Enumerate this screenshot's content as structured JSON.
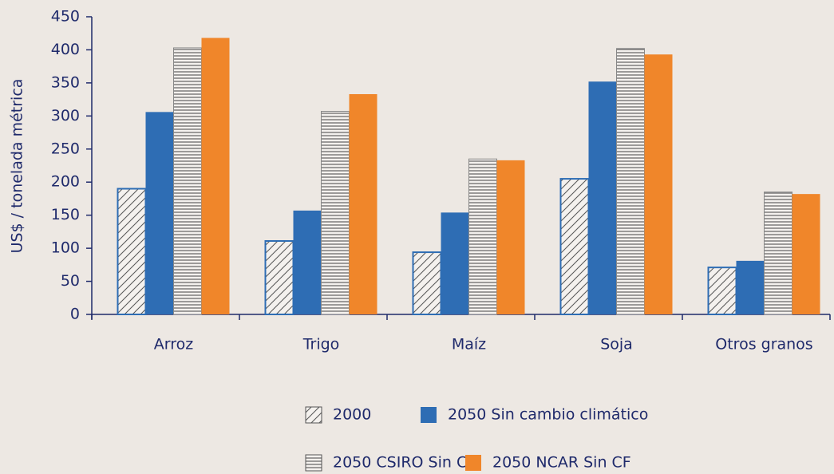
{
  "chart_data": {
    "type": "bar",
    "ylabel": "US$ / tonelada métrica",
    "categories": [
      "Arroz",
      "Trigo",
      "Maíz",
      "Soja",
      "Otros granos"
    ],
    "series": [
      {
        "name": "2000",
        "color": "#2e6db4",
        "pattern": "diagonal",
        "values": [
          190,
          111,
          94,
          205,
          71
        ]
      },
      {
        "name": "2050 Sin cambio climático",
        "color": "#2e6db4",
        "values": [
          306,
          157,
          154,
          352,
          81
        ]
      },
      {
        "name": "2050 CSIRO Sin CF",
        "color": "#333333",
        "pattern": "horizontal",
        "values": [
          403,
          307,
          235,
          402,
          185
        ]
      },
      {
        "name": "2050 NCAR Sin CF",
        "color": "#f0862a",
        "values": [
          418,
          333,
          233,
          393,
          182
        ]
      }
    ],
    "ylim": [
      0,
      450
    ],
    "yticks": [
      0,
      50,
      100,
      150,
      200,
      250,
      300,
      350,
      400,
      450
    ]
  }
}
